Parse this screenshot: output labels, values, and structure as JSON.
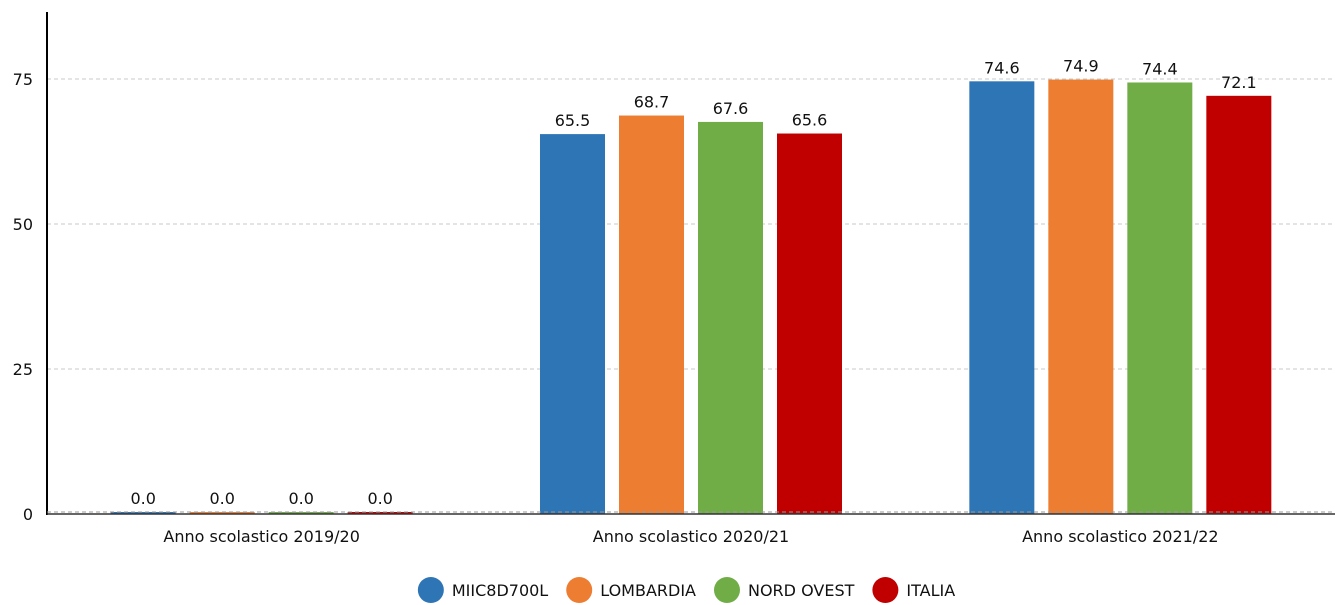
{
  "chart_data": {
    "type": "bar",
    "title": "",
    "xlabel": "",
    "ylabel": "",
    "ylim": [
      0,
      87
    ],
    "yticks": [
      0,
      25,
      50,
      75
    ],
    "grid": true,
    "legend_position": "bottom",
    "categories": [
      "Anno scolastico 2019/20",
      "Anno scolastico 2020/21",
      "Anno scolastico 2021/22"
    ],
    "series": [
      {
        "name": "MIIC8D700L",
        "color": "#2e75b6",
        "values": [
          0.0,
          65.5,
          74.6
        ]
      },
      {
        "name": "LOMBARDIA",
        "color": "#ed7d31",
        "values": [
          0.0,
          68.7,
          74.9
        ]
      },
      {
        "name": "NORD OVEST",
        "color": "#70ad47",
        "values": [
          0.0,
          67.6,
          74.4
        ]
      },
      {
        "name": "ITALIA",
        "color": "#c00000",
        "values": [
          0.0,
          65.6,
          72.1
        ]
      }
    ]
  }
}
